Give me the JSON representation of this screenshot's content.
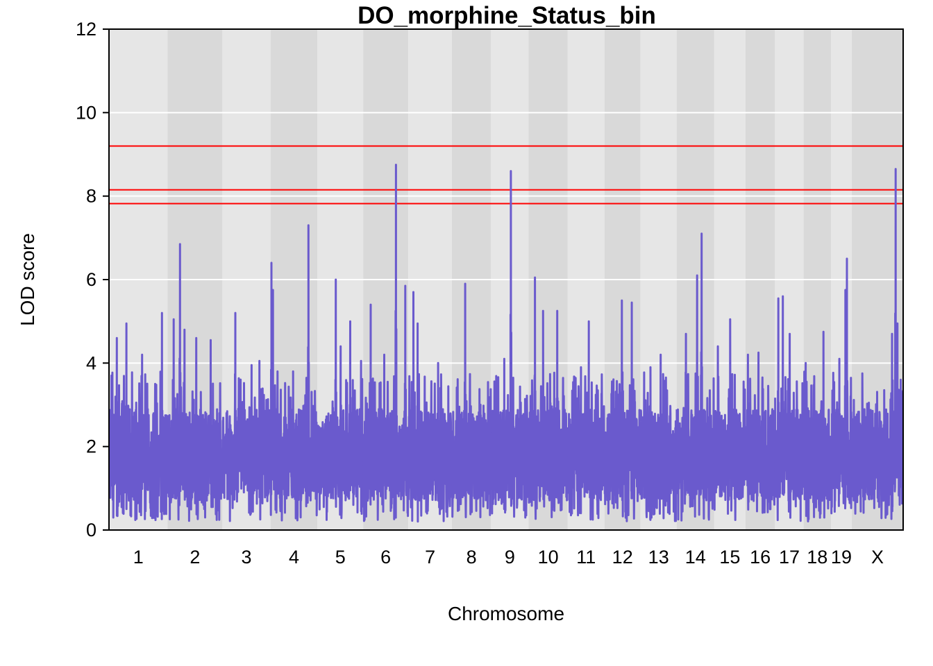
{
  "chart_data": {
    "type": "line",
    "title": "DO_morphine_Status_bin",
    "xlabel": "Chromosome",
    "ylabel": "LOD score",
    "ylim": [
      0,
      12
    ],
    "y_ticks": [
      0,
      2,
      4,
      6,
      8,
      10,
      12
    ],
    "grid": true,
    "chromosomes": [
      {
        "name": "1",
        "start": 0,
        "end": 195
      },
      {
        "name": "2",
        "start": 195,
        "end": 377
      },
      {
        "name": "3",
        "start": 377,
        "end": 537
      },
      {
        "name": "4",
        "start": 537,
        "end": 693
      },
      {
        "name": "5",
        "start": 693,
        "end": 845
      },
      {
        "name": "6",
        "start": 845,
        "end": 995
      },
      {
        "name": "7",
        "start": 995,
        "end": 1140
      },
      {
        "name": "8",
        "start": 1140,
        "end": 1270
      },
      {
        "name": "9",
        "start": 1270,
        "end": 1395
      },
      {
        "name": "10",
        "start": 1395,
        "end": 1525
      },
      {
        "name": "11",
        "start": 1525,
        "end": 1647
      },
      {
        "name": "12",
        "start": 1647,
        "end": 1767
      },
      {
        "name": "13",
        "start": 1767,
        "end": 1887
      },
      {
        "name": "14",
        "start": 1887,
        "end": 2012
      },
      {
        "name": "15",
        "start": 2012,
        "end": 2116
      },
      {
        "name": "16",
        "start": 2116,
        "end": 2214
      },
      {
        "name": "17",
        "start": 2214,
        "end": 2309
      },
      {
        "name": "18",
        "start": 2309,
        "end": 2400
      },
      {
        "name": "19",
        "start": 2400,
        "end": 2469
      },
      {
        "name": "X",
        "start": 2469,
        "end": 2640
      }
    ],
    "thresholds": [
      9.2,
      8.15,
      7.82
    ],
    "threshold_color": "#ff0000",
    "series": [
      {
        "color": "#6a5acd",
        "peaks": [
          {
            "x": 8,
            "y": 3.7
          },
          {
            "x": 26,
            "y": 4.6
          },
          {
            "x": 58,
            "y": 4.95
          },
          {
            "x": 110,
            "y": 4.2
          },
          {
            "x": 176,
            "y": 5.2
          },
          {
            "x": 215,
            "y": 5.05
          },
          {
            "x": 236,
            "y": 6.85
          },
          {
            "x": 251,
            "y": 4.8
          },
          {
            "x": 290,
            "y": 4.6
          },
          {
            "x": 338,
            "y": 4.55
          },
          {
            "x": 420,
            "y": 5.2
          },
          {
            "x": 474,
            "y": 3.95
          },
          {
            "x": 500,
            "y": 4.05
          },
          {
            "x": 540,
            "y": 6.4
          },
          {
            "x": 545,
            "y": 5.75
          },
          {
            "x": 612,
            "y": 3.8
          },
          {
            "x": 663,
            "y": 7.3
          },
          {
            "x": 754,
            "y": 6.0
          },
          {
            "x": 770,
            "y": 4.4
          },
          {
            "x": 802,
            "y": 5.0
          },
          {
            "x": 838,
            "y": 4.05
          },
          {
            "x": 870,
            "y": 5.4
          },
          {
            "x": 915,
            "y": 4.2
          },
          {
            "x": 954,
            "y": 8.75
          },
          {
            "x": 985,
            "y": 5.85
          },
          {
            "x": 1012,
            "y": 5.7
          },
          {
            "x": 1026,
            "y": 4.95
          },
          {
            "x": 1094,
            "y": 4.0
          },
          {
            "x": 1184,
            "y": 5.9
          },
          {
            "x": 1235,
            "y": 3.0
          },
          {
            "x": 1314,
            "y": 4.1
          },
          {
            "x": 1336,
            "y": 8.6
          },
          {
            "x": 1416,
            "y": 6.05
          },
          {
            "x": 1443,
            "y": 5.25
          },
          {
            "x": 1490,
            "y": 5.25
          },
          {
            "x": 1569,
            "y": 3.9
          },
          {
            "x": 1595,
            "y": 5.0
          },
          {
            "x": 1705,
            "y": 5.5
          },
          {
            "x": 1738,
            "y": 5.45
          },
          {
            "x": 1800,
            "y": 3.9
          },
          {
            "x": 1834,
            "y": 4.2
          },
          {
            "x": 1918,
            "y": 4.7
          },
          {
            "x": 1955,
            "y": 6.1
          },
          {
            "x": 1970,
            "y": 7.1
          },
          {
            "x": 2024,
            "y": 4.4
          },
          {
            "x": 2065,
            "y": 5.05
          },
          {
            "x": 2124,
            "y": 4.2
          },
          {
            "x": 2159,
            "y": 4.25
          },
          {
            "x": 2225,
            "y": 5.55
          },
          {
            "x": 2240,
            "y": 5.6
          },
          {
            "x": 2263,
            "y": 4.7
          },
          {
            "x": 2316,
            "y": 4.0
          },
          {
            "x": 2375,
            "y": 4.75
          },
          {
            "x": 2428,
            "y": 4.1
          },
          {
            "x": 2448,
            "y": 5.75
          },
          {
            "x": 2453,
            "y": 6.5
          },
          {
            "x": 2526,
            "y": 3.05
          },
          {
            "x": 2577,
            "y": 3.35
          },
          {
            "x": 2603,
            "y": 4.7
          },
          {
            "x": 2615,
            "y": 8.65
          },
          {
            "x": 2621,
            "y": 4.95
          },
          {
            "x": 2632,
            "y": 3.6
          }
        ]
      }
    ]
  }
}
